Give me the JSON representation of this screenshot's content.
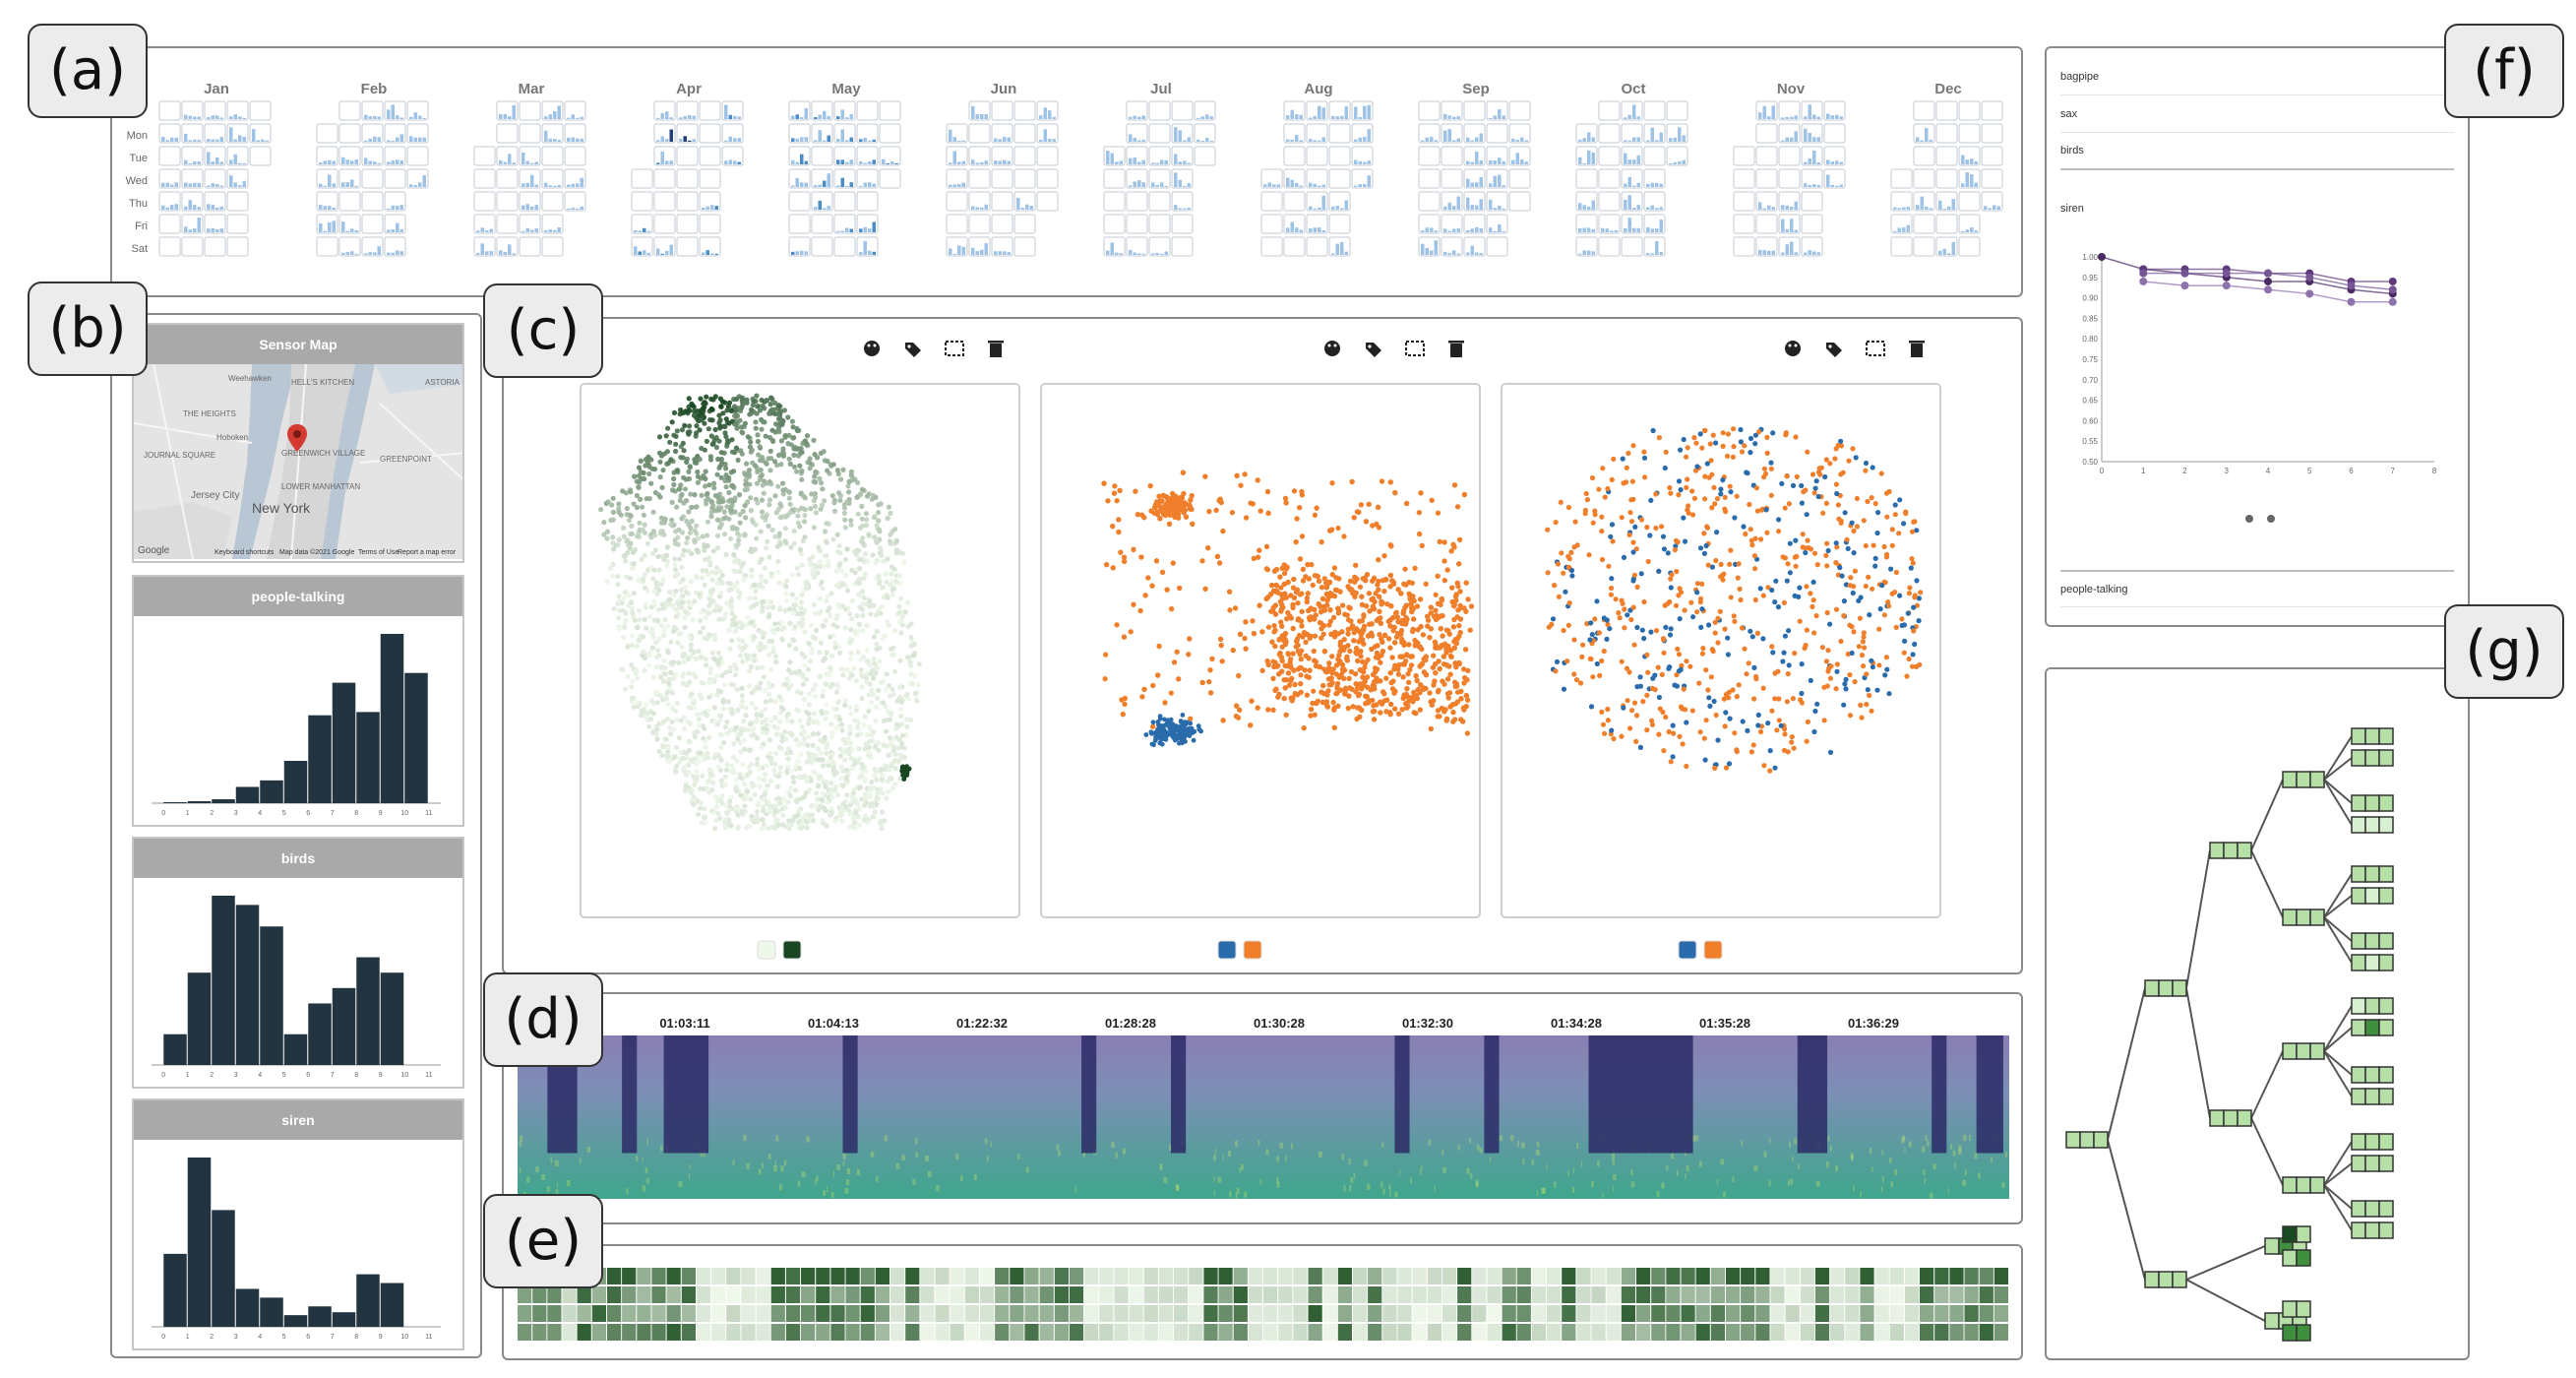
{
  "tags": {
    "a": "(a)",
    "b": "(b)",
    "c": "(c)",
    "d": "(d)",
    "e": "(e)",
    "f": "(f)",
    "g": "(g)"
  },
  "calendar": {
    "months": [
      "Jan",
      "Feb",
      "Mar",
      "Apr",
      "May",
      "Jun",
      "Jul",
      "Aug",
      "Sep",
      "Oct",
      "Nov",
      "Dec"
    ],
    "weekdays": [
      "Mon",
      "Tue",
      "Wed",
      "Thu",
      "Fri",
      "Sat"
    ],
    "colors": {
      "cell_border": "#c3c9d2",
      "bar_light": "#9ec3e6",
      "bar_mid": "#4a8cc6",
      "bar_dark": "#1f3f78"
    }
  },
  "sensor_map": {
    "title": "Sensor Map",
    "city": "New York",
    "places": [
      "Weehawken",
      "THE HEIGHTS",
      "Hoboken",
      "JOURNAL SQUARE",
      "Jersey City",
      "GREENWICH VILLAGE",
      "LOWER MANHATTAN",
      "GREENPOINT",
      "ASTORIA",
      "HELL'S KITCHEN"
    ],
    "footer": [
      "Keyboard shortcuts",
      "Map data ©2021 Google",
      "Terms of Use",
      "Report a map error"
    ],
    "google": "Google"
  },
  "histograms": [
    {
      "title": "people-talking",
      "ticks": [
        "0",
        "1",
        "2",
        "3",
        "4",
        "5",
        "6",
        "7",
        "8",
        "9",
        "10",
        "11"
      ],
      "values": [
        0.3,
        0.6,
        1.2,
        5,
        7,
        13,
        27,
        37,
        28,
        52,
        40,
        0
      ]
    },
    {
      "title": "birds",
      "ticks": [
        "0",
        "1",
        "2",
        "3",
        "4",
        "5",
        "6",
        "7",
        "8",
        "9",
        "10",
        "11"
      ],
      "values": [
        10,
        30,
        55,
        52,
        45,
        10,
        20,
        25,
        35,
        30,
        0,
        0
      ]
    },
    {
      "title": "siren",
      "ticks": [
        "0",
        "1",
        "2",
        "3",
        "4",
        "5",
        "6",
        "7",
        "8",
        "9",
        "10",
        "11"
      ],
      "values": [
        25,
        58,
        40,
        13,
        10,
        4,
        7,
        5,
        18,
        15,
        0,
        0
      ]
    }
  ],
  "hist_color": "#22343f",
  "scatter_colors": {
    "orange": "#f07f2c",
    "blue": "#2a6cab",
    "green_dark": "#1a4722",
    "green_light": "#eef7ea"
  },
  "spectrogram": {
    "timestamps": [
      "01:03:11",
      "01:04:13",
      "01:22:32",
      "01:28:28",
      "01:30:28",
      "01:32:30",
      "01:34:28",
      "01:35:28",
      "01:36:29"
    ]
  },
  "line_panel": {
    "items": [
      "bagpipe",
      "sax",
      "birds",
      "siren",
      "people-talking"
    ],
    "chart": {
      "y_ticks": [
        "0.50",
        "0.55",
        "0.60",
        "0.65",
        "0.70",
        "0.75",
        "0.80",
        "0.85",
        "0.90",
        "0.95",
        "1.00"
      ],
      "x_ticks": [
        "0",
        "1",
        "2",
        "3",
        "4",
        "5",
        "6",
        "7",
        "8"
      ],
      "ylim": [
        0.5,
        1.0
      ],
      "xlim": [
        0,
        8
      ],
      "series": [
        {
          "values": [
            1.0,
            0.97,
            0.96,
            0.95,
            0.94,
            0.94,
            0.92,
            0.91
          ],
          "color": "#4a2a63"
        },
        {
          "values": [
            null,
            0.97,
            0.97,
            0.97,
            0.96,
            0.96,
            0.94,
            0.94
          ],
          "color": "#5e3a7c"
        },
        {
          "values": [
            null,
            0.96,
            0.96,
            0.96,
            0.96,
            0.95,
            0.93,
            0.92
          ],
          "color": "#765595"
        },
        {
          "values": [
            null,
            0.94,
            0.93,
            0.93,
            0.92,
            0.91,
            0.89,
            0.89
          ],
          "color": "#8e72ad"
        }
      ]
    }
  }
}
